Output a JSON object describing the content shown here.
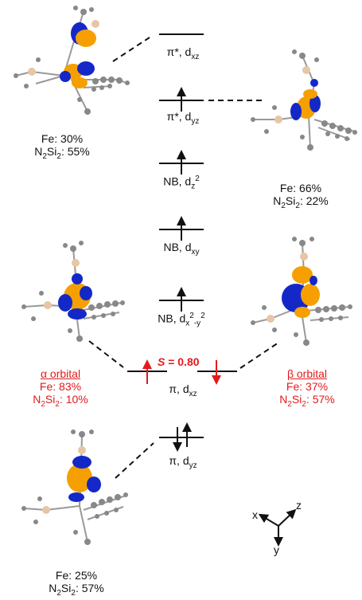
{
  "levels": {
    "l1": {
      "name": "π*, d",
      "sub": "xz"
    },
    "l2": {
      "name": "π*, d",
      "sub": "yz"
    },
    "l3": {
      "name": "NB, d",
      "sub": "z",
      "sup": "2"
    },
    "l4": {
      "name": "NB, d",
      "sub": "xy"
    },
    "l5": {
      "name": "NB, d",
      "sub": "x",
      "sup": "2",
      "sub2": "-y",
      "sup2": "2"
    },
    "l6": {
      "name": "π, d",
      "sub": "xz"
    },
    "l7": {
      "name": "π, d",
      "sub": "yz"
    }
  },
  "spin": {
    "symbol": "S",
    "value": "= 0.80"
  },
  "compositions": {
    "top_left": {
      "fe": "Fe: 30%",
      "n": "N",
      "n_sub": "2",
      "si": "Si",
      "si_sub": "2",
      "pct": ": 55%"
    },
    "top_right": {
      "fe": "Fe: 66%",
      "n": "N",
      "n_sub": "2",
      "si": "Si",
      "si_sub": "2",
      "pct": ": 22%"
    },
    "alpha": {
      "title": "α orbital",
      "fe": "Fe: 83%",
      "n": "N",
      "n_sub": "2",
      "si": "Si",
      "si_sub": "2",
      "pct": ": 10%"
    },
    "beta": {
      "title": "β orbital",
      "fe": "Fe: 37%",
      "n": "N",
      "n_sub": "2",
      "si": "Si",
      "si_sub": "2",
      "pct": ": 57%"
    },
    "bottom": {
      "fe": "Fe: 25%",
      "n": "N",
      "n_sub": "2",
      "si": "Si",
      "si_sub": "2",
      "pct": ": 57%"
    }
  },
  "axes": {
    "x": "x",
    "y": "y",
    "z": "z"
  },
  "colors": {
    "orange": "#f5a000",
    "blue": "#1428c8",
    "red": "#e31a1c",
    "grey": "#888888",
    "tan": "#e6c6a4"
  }
}
